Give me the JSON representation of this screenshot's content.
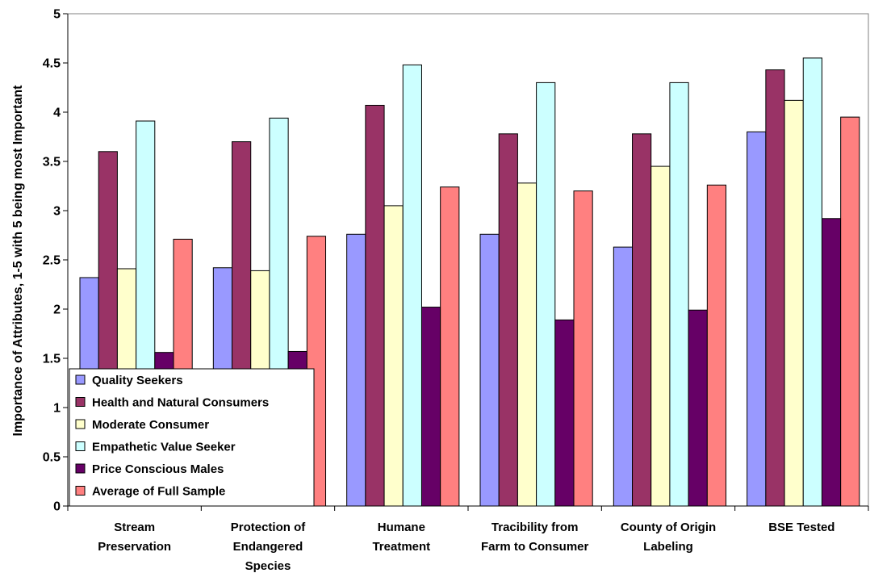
{
  "chart_data": {
    "type": "bar",
    "title": "",
    "xlabel": "",
    "ylabel": "Importance of Attributes, 1-5 with 5 being most Important",
    "ylim": [
      0,
      5
    ],
    "yticks": [
      0,
      0.5,
      1,
      1.5,
      2,
      2.5,
      3,
      3.5,
      4,
      4.5,
      5
    ],
    "ytick_labels": [
      "0",
      "0.5",
      "1",
      "1.5",
      "2",
      "2.5",
      "3",
      "3.5",
      "4",
      "4.5",
      "5"
    ],
    "grid": false,
    "legend_position": "bottom-left",
    "categories": [
      [
        "Stream",
        "Preservation"
      ],
      [
        "Protection of",
        "Endangered",
        "Species"
      ],
      [
        "Humane",
        "Treatment"
      ],
      [
        "Tracibility from",
        "Farm to Consumer"
      ],
      [
        "County of Origin",
        "Labeling"
      ],
      [
        "BSE Tested"
      ]
    ],
    "series": [
      {
        "name": "Quality Seekers",
        "color": "#9999FF",
        "values": [
          2.32,
          2.42,
          2.76,
          2.76,
          2.63,
          3.8
        ]
      },
      {
        "name": "Health and Natural Consumers",
        "color": "#993366",
        "values": [
          3.6,
          3.7,
          4.07,
          3.78,
          3.78,
          4.43
        ]
      },
      {
        "name": "Moderate Consumer",
        "color": "#FFFFCC",
        "values": [
          2.41,
          2.39,
          3.05,
          3.28,
          3.45,
          4.12
        ]
      },
      {
        "name": "Empathetic Value Seeker",
        "color": "#CCFFFF",
        "values": [
          3.91,
          3.94,
          4.48,
          4.3,
          4.3,
          4.55
        ]
      },
      {
        "name": "Price Conscious Males",
        "color": "#660066",
        "values": [
          1.56,
          1.57,
          2.02,
          1.89,
          1.99,
          2.92
        ]
      },
      {
        "name": "Average of Full Sample",
        "color": "#FF8080",
        "values": [
          2.71,
          2.74,
          3.24,
          3.2,
          3.26,
          3.95
        ]
      }
    ]
  }
}
